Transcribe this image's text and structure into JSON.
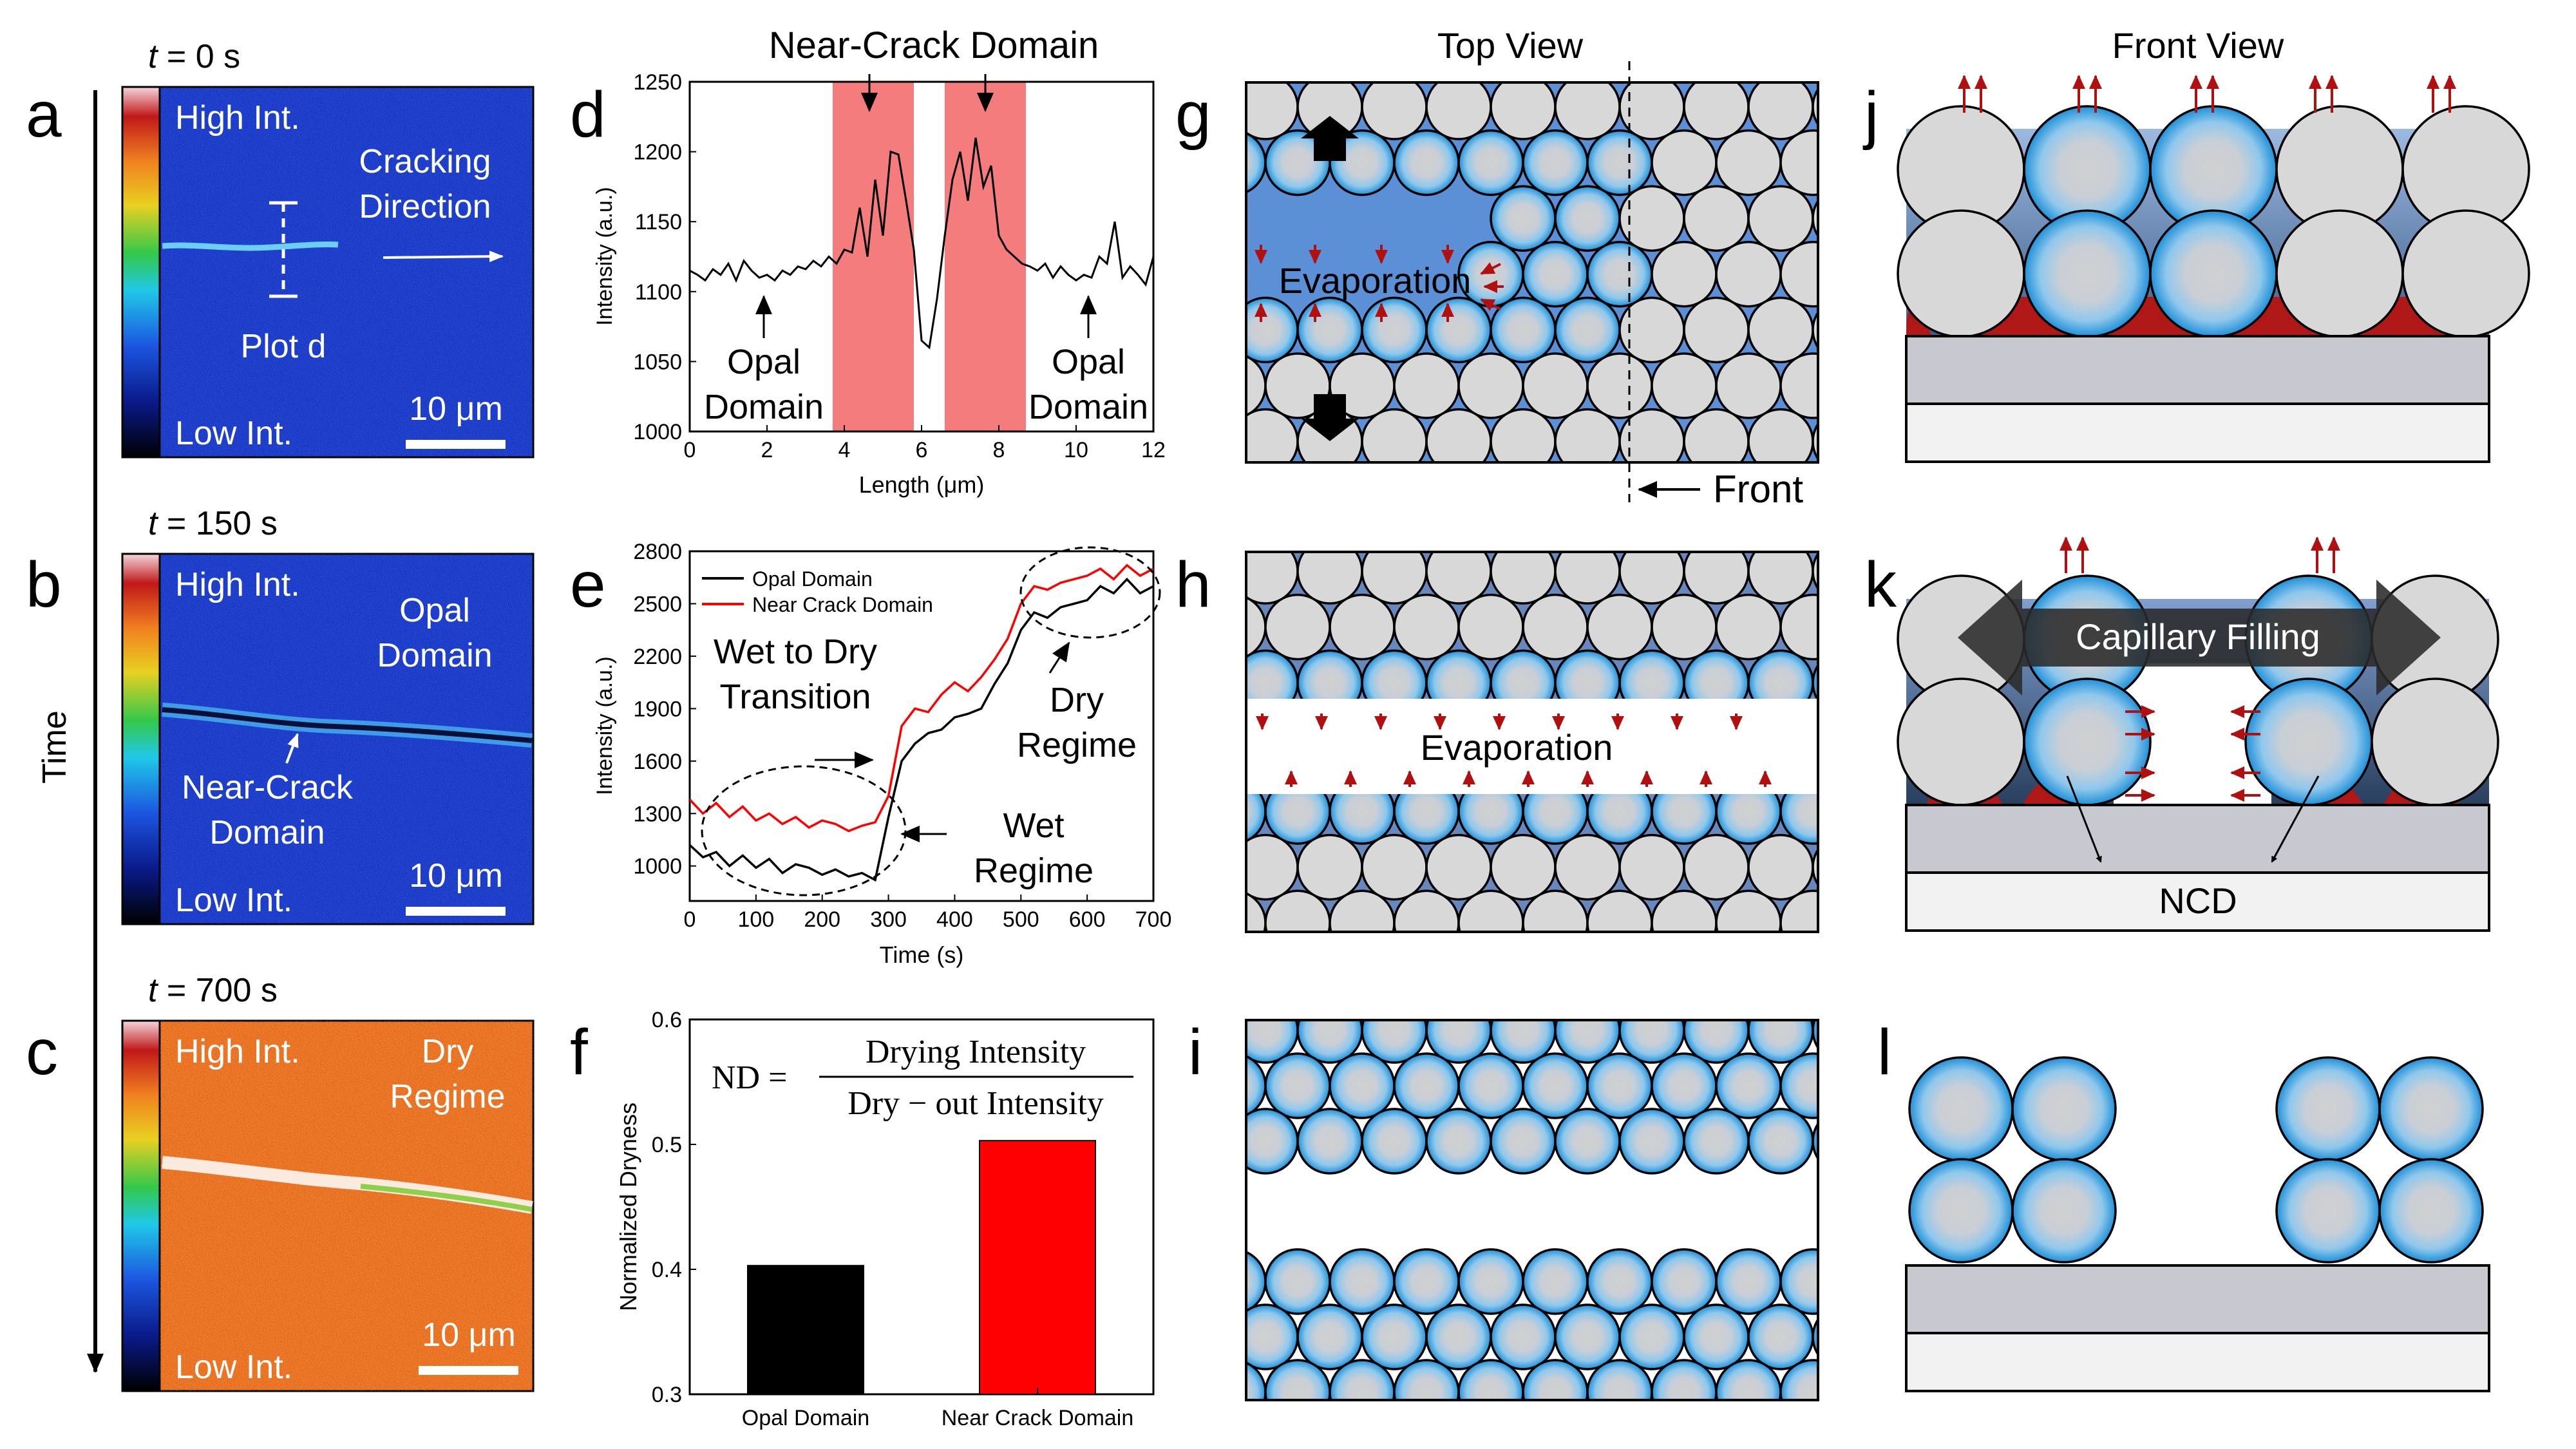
{
  "panel_letters": {
    "a": "a",
    "b": "b",
    "c": "c",
    "d": "d",
    "e": "e",
    "f": "f",
    "g": "g",
    "h": "h",
    "i": "i",
    "j": "j",
    "k": "k",
    "l": "l"
  },
  "time_axis_label": "Time",
  "micrographs": [
    {
      "time_prefix": "t",
      "time_value": " = 0 s",
      "high": "High Int.",
      "low": "Low Int.",
      "scale": "10 μm",
      "ann1": "Cracking",
      "ann2": "Direction",
      "ann3": "Plot d"
    },
    {
      "time_prefix": "t",
      "time_value": " = 150 s",
      "high": "High Int.",
      "low": "Low Int.",
      "scale": "10 μm",
      "ann1": "Opal",
      "ann2": "Domain",
      "ann3": "Near-Crack",
      "ann4": "Domain"
    },
    {
      "time_prefix": "t",
      "time_value": " = 700 s",
      "high": "High Int.",
      "low": "Low Int.",
      "scale": "10 μm",
      "ann1": "Dry",
      "ann2": "Regime"
    }
  ],
  "colors": {
    "opal": "#000000",
    "near_crack": "#ff0000",
    "highlight": "#f47c7c",
    "sphere_gray": "#d8d8d8",
    "water_blue": "#5b8fd6",
    "meniscus_red": "#b01818",
    "substrate": "#c8c9d0",
    "arrow_red": "#b01010"
  },
  "chart_data": [
    {
      "id": "d",
      "type": "line",
      "title": "Near-Crack Domain",
      "xlabel": "Length (μm)",
      "ylabel": "Intensity (a.u.)",
      "xlim": [
        0,
        12
      ],
      "ylim": [
        1000,
        1250
      ],
      "xticks": [
        "0",
        "2",
        "4",
        "6",
        "8",
        "10",
        "12"
      ],
      "yticks": [
        "1000",
        "1050",
        "1100",
        "1150",
        "1200",
        "1250"
      ],
      "highlight_ranges": [
        [
          3.7,
          5.8
        ],
        [
          6.6,
          8.7
        ]
      ],
      "annotations": [
        {
          "line1": "Opal",
          "line2": "Domain"
        },
        {
          "line1": "Opal",
          "line2": "Domain"
        }
      ],
      "x": [
        0,
        0.2,
        0.4,
        0.6,
        0.8,
        1.0,
        1.2,
        1.4,
        1.6,
        1.8,
        2.0,
        2.2,
        2.4,
        2.6,
        2.8,
        3.0,
        3.2,
        3.4,
        3.6,
        3.8,
        4.0,
        4.2,
        4.4,
        4.6,
        4.8,
        5.0,
        5.2,
        5.4,
        5.6,
        5.8,
        6.0,
        6.2,
        6.4,
        6.6,
        6.8,
        7.0,
        7.2,
        7.4,
        7.6,
        7.8,
        8.0,
        8.2,
        8.4,
        8.6,
        8.8,
        9.0,
        9.2,
        9.4,
        9.6,
        9.8,
        10.0,
        10.2,
        10.4,
        10.6,
        10.8,
        11.0,
        11.2,
        11.4,
        11.6,
        11.8,
        12.0
      ],
      "values": [
        1115,
        1112,
        1108,
        1116,
        1112,
        1120,
        1108,
        1122,
        1115,
        1110,
        1112,
        1108,
        1115,
        1112,
        1118,
        1116,
        1122,
        1118,
        1125,
        1120,
        1130,
        1128,
        1160,
        1125,
        1180,
        1140,
        1200,
        1198,
        1165,
        1130,
        1065,
        1060,
        1095,
        1140,
        1180,
        1200,
        1165,
        1210,
        1175,
        1190,
        1140,
        1130,
        1125,
        1120,
        1118,
        1115,
        1120,
        1110,
        1118,
        1112,
        1108,
        1112,
        1110,
        1125,
        1120,
        1150,
        1110,
        1118,
        1112,
        1105,
        1125
      ]
    },
    {
      "id": "e",
      "type": "line",
      "xlabel": "Time (s)",
      "ylabel": "Intensity (a.u.)",
      "xlim": [
        0,
        700
      ],
      "ylim": [
        800,
        2800
      ],
      "xticks": [
        "0",
        "100",
        "200",
        "300",
        "400",
        "500",
        "600",
        "700"
      ],
      "yticks": [
        "1000",
        "1300",
        "1600",
        "1900",
        "2200",
        "2500",
        "2800"
      ],
      "series": [
        {
          "name": "Opal Domain",
          "x": [
            0,
            20,
            40,
            60,
            80,
            100,
            120,
            140,
            160,
            180,
            200,
            220,
            240,
            260,
            280,
            300,
            320,
            340,
            360,
            380,
            400,
            420,
            440,
            460,
            480,
            500,
            520,
            540,
            560,
            580,
            600,
            620,
            640,
            660,
            680,
            700
          ],
          "values": [
            1120,
            1050,
            1080,
            1000,
            1060,
            990,
            1040,
            960,
            1010,
            990,
            950,
            980,
            940,
            960,
            920,
            1280,
            1600,
            1700,
            1760,
            1780,
            1850,
            1870,
            1900,
            2040,
            2160,
            2350,
            2450,
            2420,
            2480,
            2500,
            2520,
            2600,
            2560,
            2640,
            2560,
            2600
          ]
        },
        {
          "name": "Near Crack Domain",
          "x": [
            0,
            20,
            40,
            60,
            80,
            100,
            120,
            140,
            160,
            180,
            200,
            220,
            240,
            260,
            280,
            300,
            320,
            340,
            360,
            380,
            400,
            420,
            440,
            460,
            480,
            500,
            520,
            540,
            560,
            580,
            600,
            620,
            640,
            660,
            680,
            700
          ],
          "values": [
            1380,
            1300,
            1360,
            1280,
            1340,
            1260,
            1300,
            1240,
            1280,
            1220,
            1260,
            1240,
            1200,
            1230,
            1250,
            1400,
            1800,
            1900,
            1880,
            1980,
            2050,
            2000,
            2080,
            2180,
            2300,
            2500,
            2600,
            2580,
            2620,
            2640,
            2660,
            2700,
            2640,
            2720,
            2660,
            2700
          ]
        }
      ],
      "annotations": [
        {
          "line1": "Wet to Dry",
          "line2": "Transition"
        },
        {
          "line1": "Dry",
          "line2": "Regime"
        },
        {
          "line1": "Wet",
          "line2": "Regime"
        }
      ],
      "legend_position": "top-left"
    },
    {
      "id": "f",
      "type": "bar",
      "categories": [
        "Opal Domain",
        "Near Crack Domain"
      ],
      "values": [
        0.403,
        0.503
      ],
      "ylabel": "Normalized Dryness",
      "ylim": [
        0.3,
        0.6
      ],
      "yticks": [
        "0.3",
        "0.4",
        "0.5",
        "0.6"
      ],
      "equation": {
        "lhs": "ND = ",
        "numerator": "Drying Intensity",
        "denominator": "Dry − out Intensity"
      }
    }
  ],
  "schematic": {
    "top_view_title": "Top View",
    "front_view_title": "Front View",
    "evaporation": "Evaporation",
    "front": "Front",
    "capillary": "Capillary Filling",
    "ncd": "NCD"
  }
}
